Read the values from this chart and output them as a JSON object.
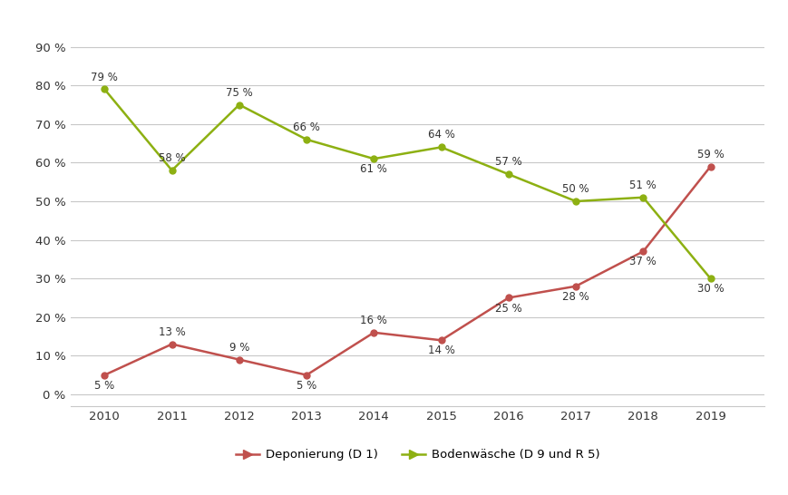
{
  "years": [
    2010,
    2011,
    2012,
    2013,
    2014,
    2015,
    2016,
    2017,
    2018,
    2019
  ],
  "deponierung": [
    5,
    13,
    9,
    5,
    16,
    14,
    25,
    28,
    37,
    59
  ],
  "bodenwaesche": [
    79,
    58,
    75,
    66,
    61,
    64,
    57,
    50,
    51,
    30
  ],
  "dep_color": "#C0504D",
  "bod_color": "#8DB012",
  "dep_label": "Deponierung (D 1)",
  "bod_label": "Bodenwäsche (D 9 und R 5)",
  "yticks": [
    0,
    10,
    20,
    30,
    40,
    50,
    60,
    70,
    80,
    90
  ],
  "ylim": [
    -3,
    97
  ],
  "xlim": [
    2009.5,
    2019.8
  ],
  "background_color": "#ffffff",
  "grid_color": "#c8c8c8",
  "annotation_fontsize": 8.5,
  "tick_fontsize": 9.5,
  "legend_fontsize": 9.5,
  "dep_annotations": {
    "2010": {
      "val": 5,
      "ox": 0,
      "oy": -13
    },
    "2011": {
      "val": 13,
      "ox": 0,
      "oy": 5
    },
    "2012": {
      "val": 9,
      "ox": 0,
      "oy": 5
    },
    "2013": {
      "val": 5,
      "ox": 0,
      "oy": -13
    },
    "2014": {
      "val": 16,
      "ox": 0,
      "oy": 5
    },
    "2015": {
      "val": 14,
      "ox": 0,
      "oy": -13
    },
    "2016": {
      "val": 25,
      "ox": 0,
      "oy": -13
    },
    "2017": {
      "val": 28,
      "ox": 0,
      "oy": -13
    },
    "2018": {
      "val": 37,
      "ox": 0,
      "oy": -13
    },
    "2019": {
      "val": 59,
      "ox": 0,
      "oy": 5
    }
  },
  "bod_annotations": {
    "2010": {
      "val": 79,
      "ox": 0,
      "oy": 5
    },
    "2011": {
      "val": 58,
      "ox": 0,
      "oy": 5
    },
    "2012": {
      "val": 75,
      "ox": 0,
      "oy": 5
    },
    "2013": {
      "val": 66,
      "ox": 0,
      "oy": 5
    },
    "2014": {
      "val": 61,
      "ox": 0,
      "oy": -13
    },
    "2015": {
      "val": 64,
      "ox": 0,
      "oy": 5
    },
    "2016": {
      "val": 57,
      "ox": 0,
      "oy": 5
    },
    "2017": {
      "val": 50,
      "ox": 0,
      "oy": 5
    },
    "2018": {
      "val": 51,
      "ox": 0,
      "oy": 5
    },
    "2019": {
      "val": 30,
      "ox": 0,
      "oy": -13
    }
  }
}
